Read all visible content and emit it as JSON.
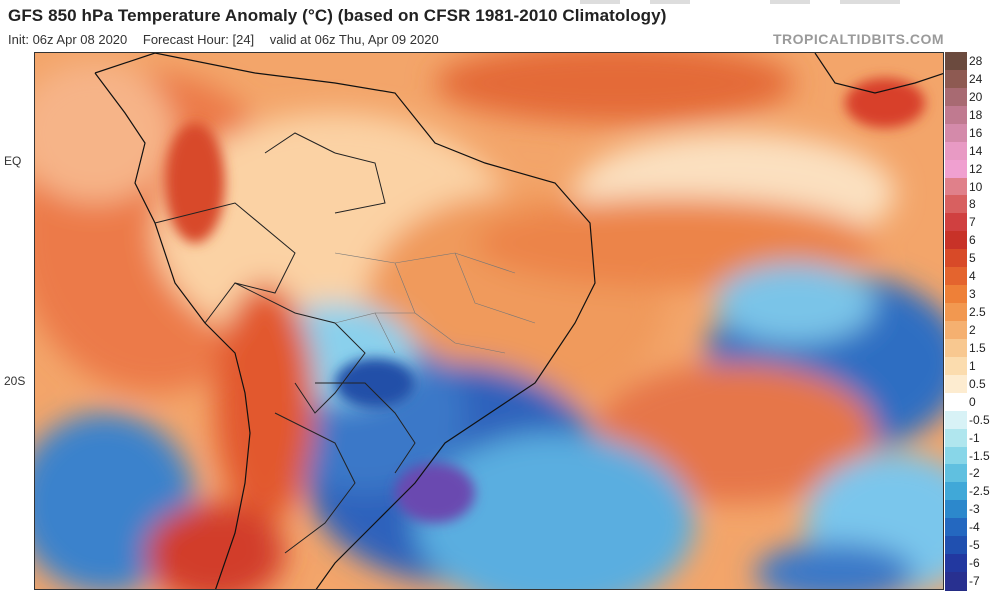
{
  "header": {
    "title": "GFS 850 hPa Temperature Anomaly (°C) (based on CFSR 1981-2010 Climatology)",
    "init": "Init: 06z Apr 08 2020",
    "forecast_hour": "Forecast Hour: [24]",
    "valid": "valid at 06z Thu, Apr 09 2020",
    "brand": "TROPICALTIDBITS.COM"
  },
  "map": {
    "lat_labels": [
      "EQ",
      "20S"
    ]
  },
  "colorbar": {
    "labels": [
      "28",
      "24",
      "20",
      "18",
      "16",
      "14",
      "12",
      "10",
      "8",
      "7",
      "6",
      "5",
      "4",
      "3",
      "2.5",
      "2",
      "1.5",
      "1",
      "0.5",
      "0",
      "-0.5",
      "-1",
      "-1.5",
      "-2",
      "-2.5",
      "-3",
      "-4",
      "-5",
      "-6",
      "-7"
    ],
    "colors": [
      "#6b4a3e",
      "#8e5a52",
      "#a86a72",
      "#c07a90",
      "#d48aaa",
      "#e89ac4",
      "#f0a0d0",
      "#e0808a",
      "#d86060",
      "#d04040",
      "#c83228",
      "#d84a28",
      "#e4642e",
      "#ee8038",
      "#f29850",
      "#f5b070",
      "#f8c890",
      "#fbdcae",
      "#fdecd0",
      "#ffffff",
      "#d8f2f6",
      "#b0e6ee",
      "#88d6e8",
      "#60c0e0",
      "#40a8d8",
      "#2c88cc",
      "#2468c0",
      "#2050b0",
      "#2238a0",
      "#283090"
    ]
  }
}
